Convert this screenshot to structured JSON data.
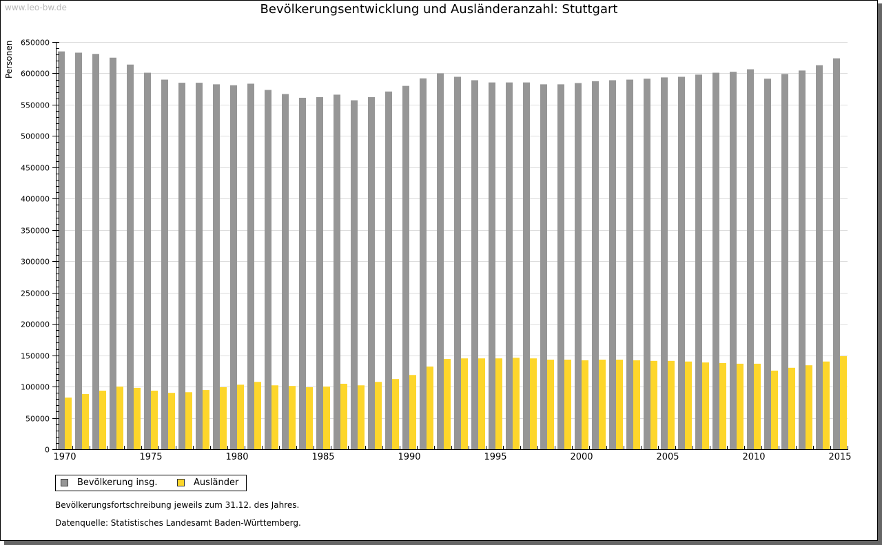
{
  "header": {
    "source_watermark": "www.leo-bw.de"
  },
  "colors": {
    "series_total": "#969696",
    "series_foreign": "#fdd62b",
    "grid": "#dddddd",
    "axis": "#000000"
  },
  "footer": {
    "note": "Bevölkerungsfortschreibung jeweils zum 31.12. des Jahres.",
    "source": "Datenquelle: Statistisches Landesamt Baden-Württemberg."
  },
  "chart_data": {
    "type": "bar",
    "title": "Bevölkerungsentwicklung und Ausländeranzahl: Stuttgart",
    "xlabel": "",
    "ylabel": "Personen",
    "ylim": [
      0,
      650000
    ],
    "grid": true,
    "legend_position": "bottom-left",
    "y_ticks": [
      "0",
      "50000",
      "100000",
      "150000",
      "200000",
      "250000",
      "300000",
      "350000",
      "400000",
      "450000",
      "500000",
      "550000",
      "600000",
      "650000"
    ],
    "x_tick_labels": [
      "1970",
      "1975",
      "1980",
      "1985",
      "1990",
      "1995",
      "2000",
      "2005",
      "2010",
      "2015"
    ],
    "categories": [
      1970,
      1971,
      1972,
      1973,
      1974,
      1975,
      1976,
      1977,
      1978,
      1979,
      1980,
      1981,
      1982,
      1983,
      1984,
      1985,
      1986,
      1987,
      1988,
      1989,
      1990,
      1991,
      1992,
      1993,
      1994,
      1995,
      1996,
      1997,
      1998,
      1999,
      2000,
      2001,
      2002,
      2003,
      2004,
      2005,
      2006,
      2007,
      2008,
      2009,
      2010,
      2011,
      2012,
      2013,
      2014,
      2015
    ],
    "series": [
      {
        "name": "Bevölkerung insg.",
        "values": [
          635000,
          633000,
          631000,
          625000,
          614000,
          601000,
          590000,
          585000,
          585000,
          582500,
          581000,
          583500,
          573500,
          567000,
          561000,
          562000,
          566000,
          557000,
          562000,
          571000,
          580000,
          592000,
          600000,
          594500,
          589000,
          585500,
          585500,
          585500,
          582500,
          582500,
          584500,
          587500,
          589000,
          590000,
          591500,
          593500,
          594500,
          598000,
          601000,
          602500,
          606500,
          591500,
          599000,
          604500,
          613000,
          624000
        ]
      },
      {
        "name": "Ausländer",
        "values": [
          82500,
          88000,
          93500,
          100000,
          98000,
          93500,
          90000,
          91000,
          94500,
          99000,
          103000,
          107500,
          102000,
          101000,
          99000,
          100000,
          104500,
          102000,
          107500,
          112000,
          118500,
          132000,
          144000,
          145000,
          145000,
          145000,
          146000,
          145000,
          143000,
          143000,
          142000,
          143000,
          143000,
          142000,
          141000,
          141000,
          140000,
          138500,
          137500,
          136500,
          136500,
          125500,
          130000,
          134000,
          140000,
          148500
        ]
      }
    ]
  }
}
